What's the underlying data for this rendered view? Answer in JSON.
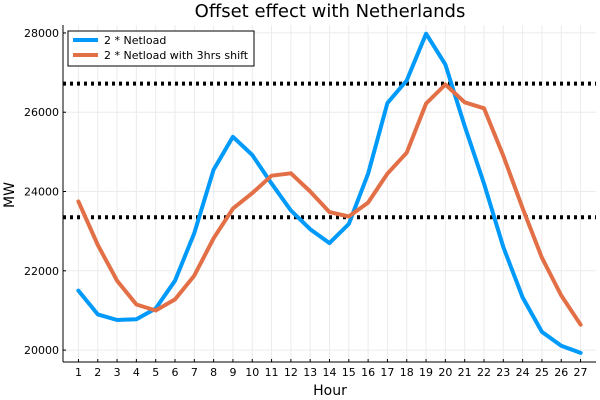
{
  "chart_data": {
    "type": "line",
    "title": "Offset effect with Netherlands",
    "xlabel": "Hour",
    "ylabel": "MW",
    "x": [
      1,
      2,
      3,
      4,
      5,
      6,
      7,
      8,
      9,
      10,
      11,
      12,
      13,
      14,
      15,
      16,
      17,
      18,
      19,
      20,
      21,
      22,
      23,
      24,
      25,
      26,
      27
    ],
    "xlim": [
      0.2,
      27.8
    ],
    "ylim": [
      19700,
      28200
    ],
    "yticks": [
      20000,
      22000,
      24000,
      26000,
      28000
    ],
    "xticks": [
      1,
      2,
      3,
      4,
      5,
      6,
      7,
      8,
      9,
      10,
      11,
      12,
      13,
      14,
      15,
      16,
      17,
      18,
      19,
      20,
      21,
      22,
      23,
      24,
      25,
      26,
      27
    ],
    "grid": true,
    "legend_position": "top-left",
    "series": [
      {
        "name": "2 * Netload",
        "color": "#009AFA",
        "values": [
          21500,
          20900,
          20760,
          20780,
          21050,
          21750,
          22950,
          24550,
          25380,
          24920,
          24200,
          23520,
          23050,
          22700,
          23180,
          24450,
          26230,
          26800,
          27980,
          27200,
          25650,
          24200,
          22600,
          21330,
          20460,
          20110,
          19930
        ]
      },
      {
        "name": "2 * Netload with 3hrs shift",
        "color": "#E26F46",
        "values": [
          23750,
          22650,
          21750,
          21150,
          21000,
          21280,
          21880,
          22820,
          23570,
          23960,
          24400,
          24460,
          24000,
          23480,
          23370,
          23720,
          24450,
          24980,
          26220,
          26700,
          26250,
          26100,
          24900,
          23580,
          22330,
          21380,
          20640
        ]
      }
    ],
    "hlines": [
      {
        "value": 26720,
        "color": "#000000",
        "style": "dotted"
      },
      {
        "value": 23350,
        "color": "#000000",
        "style": "dotted"
      }
    ]
  }
}
